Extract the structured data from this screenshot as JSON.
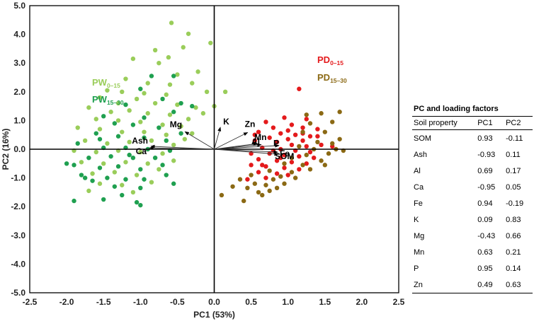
{
  "chart_data": {
    "type": "scatter",
    "title": "",
    "xlabel": "PC1 (53%)",
    "ylabel": "PC2 (16%)",
    "xlim": [
      -2.5,
      2.5
    ],
    "ylim": [
      -5.0,
      5.0
    ],
    "xticks": [
      "-2.5",
      "-2.0",
      "-1.5",
      "-1.0",
      "-0.5",
      "0.0",
      "0.5",
      "1.0",
      "1.5",
      "2.0",
      "2.5"
    ],
    "yticks": [
      "5.0",
      "4.0",
      "3.0",
      "2.0",
      "1.0",
      "0.0",
      "-1.0",
      "-2.0",
      "-3.0",
      "-4.0",
      "-5.0"
    ],
    "groups": [
      {
        "name": "PW",
        "sub": "0-15",
        "color": "#9acd5a"
      },
      {
        "name": "PW",
        "sub": "15-30",
        "color": "#1fa050"
      },
      {
        "name": "PD",
        "sub": "0-15",
        "color": "#e41a1c"
      },
      {
        "name": "PD",
        "sub": "15-30",
        "color": "#8b6914"
      }
    ],
    "series": [
      {
        "name": "PW 0-15",
        "color": "#9acd5a",
        "points": [
          [
            -0.58,
            4.4
          ],
          [
            -0.35,
            4.02
          ],
          [
            -0.05,
            3.7
          ],
          [
            -0.8,
            3.45
          ],
          [
            -0.42,
            3.55
          ],
          [
            -0.62,
            3.2
          ],
          [
            -1.1,
            3.15
          ],
          [
            -0.75,
            3.0
          ],
          [
            -0.22,
            2.7
          ],
          [
            -0.5,
            2.6
          ],
          [
            -1.2,
            2.45
          ],
          [
            -0.9,
            2.3
          ],
          [
            -0.6,
            2.25
          ],
          [
            -0.3,
            2.3
          ],
          [
            -1.45,
            2.05
          ],
          [
            -1.25,
            2.0
          ],
          [
            -0.95,
            1.95
          ],
          [
            -0.65,
            1.9
          ],
          [
            -0.1,
            2.0
          ],
          [
            0.15,
            2.0
          ],
          [
            -1.55,
            1.8
          ],
          [
            -1.3,
            1.6
          ],
          [
            -1.05,
            1.75
          ],
          [
            -0.8,
            1.6
          ],
          [
            -0.5,
            1.55
          ],
          [
            -0.25,
            1.45
          ],
          [
            0.0,
            1.5
          ],
          [
            -1.7,
            1.45
          ],
          [
            -1.4,
            1.3
          ],
          [
            -1.15,
            1.35
          ],
          [
            -0.9,
            1.25
          ],
          [
            -0.6,
            1.2
          ],
          [
            -0.35,
            1.05
          ],
          [
            -0.15,
            1.25
          ],
          [
            -1.6,
            1.05
          ],
          [
            -1.3,
            1.0
          ],
          [
            -1.0,
            0.95
          ],
          [
            -0.7,
            0.85
          ],
          [
            -0.45,
            0.8
          ],
          [
            -1.85,
            0.75
          ],
          [
            -1.55,
            0.7
          ],
          [
            -1.25,
            0.6
          ],
          [
            -0.95,
            0.6
          ],
          [
            -0.65,
            0.5
          ],
          [
            -0.4,
            0.35
          ],
          [
            -1.75,
            0.3
          ],
          [
            -1.45,
            0.2
          ],
          [
            -1.15,
            0.25
          ],
          [
            -0.85,
            0.3
          ],
          [
            -0.55,
            0.15
          ],
          [
            -1.9,
            -0.05
          ],
          [
            -1.6,
            -0.1
          ],
          [
            -1.3,
            -0.05
          ],
          [
            -1.0,
            -0.1
          ],
          [
            -0.7,
            -0.15
          ],
          [
            -1.8,
            -0.45
          ],
          [
            -1.5,
            -0.5
          ],
          [
            -1.2,
            -0.45
          ],
          [
            -0.9,
            -0.5
          ],
          [
            -1.65,
            -0.85
          ],
          [
            -1.35,
            -0.8
          ],
          [
            -1.05,
            -0.9
          ],
          [
            -1.55,
            -1.2
          ],
          [
            -1.25,
            -1.25
          ],
          [
            -0.85,
            -1.15
          ],
          [
            -1.7,
            -1.45
          ],
          [
            -1.1,
            -1.5
          ],
          [
            -0.75,
            -0.7
          ],
          [
            -0.55,
            -0.4
          ],
          [
            -0.3,
            0.55
          ]
        ]
      },
      {
        "name": "PW 15-30",
        "color": "#1fa050",
        "points": [
          [
            -0.85,
            2.55
          ],
          [
            -0.55,
            2.55
          ],
          [
            -1.0,
            2.1
          ],
          [
            -0.7,
            1.75
          ],
          [
            -0.45,
            1.6
          ],
          [
            -1.2,
            1.55
          ],
          [
            -0.3,
            1.5
          ],
          [
            -0.55,
            1.3
          ],
          [
            -1.5,
            1.15
          ],
          [
            -0.95,
            1.1
          ],
          [
            -1.35,
            0.9
          ],
          [
            -1.1,
            0.85
          ],
          [
            -0.75,
            0.75
          ],
          [
            -0.45,
            0.55
          ],
          [
            -1.6,
            0.55
          ],
          [
            -1.3,
            0.45
          ],
          [
            -0.95,
            0.4
          ],
          [
            -0.65,
            0.3
          ],
          [
            -1.85,
            0.2
          ],
          [
            -1.5,
            0.05
          ],
          [
            -1.2,
            0.05
          ],
          [
            -0.9,
            0.0
          ],
          [
            -0.6,
            -0.05
          ],
          [
            -1.7,
            -0.3
          ],
          [
            -1.4,
            -0.25
          ],
          [
            -1.1,
            -0.3
          ],
          [
            -0.8,
            -0.3
          ],
          [
            -1.9,
            -0.55
          ],
          [
            -1.55,
            -0.65
          ],
          [
            -1.3,
            -0.6
          ],
          [
            -1.0,
            -0.7
          ],
          [
            -0.7,
            -0.55
          ],
          [
            -1.8,
            -0.9
          ],
          [
            -1.45,
            -1.0
          ],
          [
            -1.2,
            -1.05
          ],
          [
            -0.95,
            -1.05
          ],
          [
            -1.65,
            -1.1
          ],
          [
            -1.35,
            -1.3
          ],
          [
            -1.0,
            -1.35
          ],
          [
            -1.9,
            -1.8
          ],
          [
            -1.5,
            -1.75
          ],
          [
            -1.05,
            -1.85
          ],
          [
            -1.0,
            -1.95
          ],
          [
            -1.75,
            -1.0
          ],
          [
            -1.15,
            -0.2
          ],
          [
            -0.55,
            -1.2
          ],
          [
            -1.55,
            0.35
          ],
          [
            -1.25,
            -1.6
          ],
          [
            -2.0,
            -0.5
          ],
          [
            -0.65,
            -0.9
          ]
        ]
      },
      {
        "name": "PD 0-15",
        "color": "#e41a1c",
        "points": [
          [
            1.15,
            2.1
          ],
          [
            0.95,
            1.1
          ],
          [
            1.25,
            1.05
          ],
          [
            0.7,
            0.95
          ],
          [
            1.05,
            0.85
          ],
          [
            0.8,
            0.75
          ],
          [
            1.2,
            0.75
          ],
          [
            1.4,
            0.7
          ],
          [
            0.6,
            0.6
          ],
          [
            0.9,
            0.55
          ],
          [
            1.1,
            0.5
          ],
          [
            1.3,
            0.45
          ],
          [
            0.75,
            0.4
          ],
          [
            1.0,
            0.35
          ],
          [
            1.2,
            0.3
          ],
          [
            0.55,
            0.3
          ],
          [
            0.85,
            0.25
          ],
          [
            1.05,
            0.15
          ],
          [
            1.25,
            0.1
          ],
          [
            1.45,
            0.15
          ],
          [
            0.65,
            0.05
          ],
          [
            0.9,
            0.0
          ],
          [
            1.1,
            -0.05
          ],
          [
            1.3,
            -0.1
          ],
          [
            0.5,
            -0.15
          ],
          [
            0.75,
            -0.15
          ],
          [
            0.95,
            -0.2
          ],
          [
            1.15,
            -0.25
          ],
          [
            1.35,
            -0.3
          ],
          [
            0.6,
            -0.35
          ],
          [
            0.85,
            -0.4
          ],
          [
            1.05,
            -0.45
          ],
          [
            1.25,
            -0.5
          ],
          [
            0.5,
            -0.55
          ],
          [
            0.7,
            -0.6
          ],
          [
            0.95,
            -0.65
          ],
          [
            1.15,
            -0.7
          ],
          [
            0.6,
            -0.8
          ],
          [
            0.85,
            -0.85
          ],
          [
            0.45,
            -1.05
          ],
          [
            0.7,
            -1.0
          ],
          [
            1.0,
            -0.9
          ],
          [
            0.55,
            0.5
          ],
          [
            1.0,
            0.65
          ],
          [
            1.4,
            0.45
          ],
          [
            0.8,
            -0.05
          ],
          [
            1.2,
            0.55
          ],
          [
            0.65,
            -0.55
          ],
          [
            1.6,
            0.1
          ],
          [
            0.9,
            -0.3
          ]
        ]
      },
      {
        "name": "PD 15-30",
        "color": "#8b6914",
        "points": [
          [
            1.7,
            1.3
          ],
          [
            1.45,
            1.25
          ],
          [
            1.25,
            1.2
          ],
          [
            1.6,
            0.95
          ],
          [
            1.3,
            0.9
          ],
          [
            1.5,
            0.6
          ],
          [
            1.7,
            0.35
          ],
          [
            1.2,
            0.6
          ],
          [
            1.4,
            0.25
          ],
          [
            1.6,
            0.2
          ],
          [
            1.35,
            0.0
          ],
          [
            1.55,
            -0.15
          ],
          [
            1.25,
            -0.2
          ],
          [
            1.05,
            -0.3
          ],
          [
            1.45,
            -0.4
          ],
          [
            1.2,
            -0.55
          ],
          [
            0.95,
            -0.5
          ],
          [
            0.75,
            -0.75
          ],
          [
            1.05,
            -0.8
          ],
          [
            0.5,
            -0.9
          ],
          [
            0.8,
            -1.05
          ],
          [
            0.55,
            -1.2
          ],
          [
            0.35,
            -1.05
          ],
          [
            0.7,
            -1.25
          ],
          [
            0.45,
            -1.35
          ],
          [
            0.25,
            -1.3
          ],
          [
            0.1,
            -1.6
          ],
          [
            0.4,
            -1.8
          ],
          [
            0.6,
            -1.5
          ],
          [
            0.85,
            -1.35
          ],
          [
            1.1,
            -1.0
          ],
          [
            1.3,
            -0.7
          ],
          [
            0.9,
            -0.95
          ],
          [
            1.5,
            -0.55
          ],
          [
            1.65,
            0.0
          ],
          [
            0.65,
            -1.6
          ],
          [
            1.75,
            -0.05
          ],
          [
            0.95,
            -1.2
          ],
          [
            1.15,
            0.1
          ],
          [
            0.75,
            -1.45
          ]
        ]
      }
    ],
    "vectors": [
      {
        "label": "Mg",
        "x": -0.43,
        "y": 0.66
      },
      {
        "label": "Ash",
        "x": -0.93,
        "y": 0.11
      },
      {
        "label": "Ca",
        "x": -0.95,
        "y": 0.05
      },
      {
        "label": "K",
        "x": 0.09,
        "y": 0.83
      },
      {
        "label": "Zn",
        "x": 0.49,
        "y": 0.63
      },
      {
        "label": "Mn",
        "x": 0.63,
        "y": 0.21
      },
      {
        "label": "Al",
        "x": 0.69,
        "y": 0.17
      },
      {
        "label": "P",
        "x": 0.95,
        "y": 0.14
      },
      {
        "label": "SOM",
        "x": 0.93,
        "y": -0.11
      },
      {
        "label": "Fe",
        "x": 0.94,
        "y": -0.19
      }
    ],
    "table": {
      "title": "PC and loading factors",
      "headers": [
        "Soil property",
        "PC1",
        "PC2"
      ],
      "rows": [
        [
          "SOM",
          "0.93",
          "-0.11"
        ],
        [
          "Ash",
          "-0.93",
          "0.11"
        ],
        [
          "Al",
          "0.69",
          "0.17"
        ],
        [
          "Ca",
          "-0.95",
          "0.05"
        ],
        [
          "Fe",
          "0.94",
          "-0.19"
        ],
        [
          "K",
          "0.09",
          "0.83"
        ],
        [
          "Mg",
          "-0.43",
          "0.66"
        ],
        [
          "Mn",
          "0.63",
          "0.21"
        ],
        [
          "P",
          "0.95",
          "0.14"
        ],
        [
          "Zn",
          "0.49",
          "0.63"
        ]
      ]
    }
  }
}
